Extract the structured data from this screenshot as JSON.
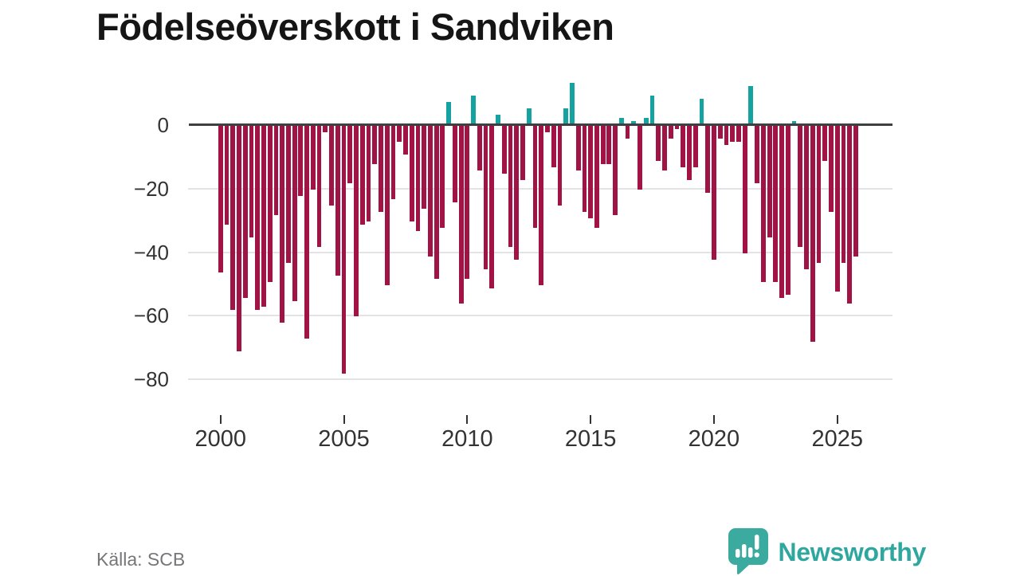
{
  "title": "Födelseöverskott i Sandviken",
  "source": {
    "label": "Källa: SCB"
  },
  "branding": {
    "name": "Newsworthy",
    "logo_icon": "speech-bubble-bar-chart-icon",
    "logo_color": "#3baa9f",
    "wordmark_color": "#2ea79e"
  },
  "colors": {
    "negative_bar": "#a11245",
    "positive_bar": "#14a3a0",
    "zero_line": "#3f3f42",
    "gridline": "#e3e3e5",
    "axis_text": "#333333"
  },
  "chart_data": {
    "type": "bar",
    "title": "Födelseöverskott i Sandviken",
    "frequency": "quarterly",
    "start_year": 2000,
    "periods_per_year": 4,
    "xlabel": "",
    "ylabel": "",
    "ylim": [
      -82,
      15
    ],
    "grid": true,
    "y_ticks": [
      0,
      -20,
      -40,
      -60,
      -80
    ],
    "y_tick_labels": [
      "0",
      "−20",
      "−40",
      "−60",
      "−80"
    ],
    "x_tick_years": [
      2000,
      2005,
      2010,
      2015,
      2020,
      2025
    ],
    "x_tick_labels": [
      "2000",
      "2005",
      "2010",
      "2015",
      "2020",
      "2025"
    ],
    "series": [
      {
        "name": "Födelseöverskott",
        "values": [
          -46,
          -31,
          -58,
          -71,
          -54,
          -35,
          -58,
          -57,
          -49,
          -28,
          -62,
          -43,
          -55,
          -22,
          -67,
          -20,
          -38,
          -2,
          -25,
          -47,
          -78,
          -18,
          -60,
          -31,
          -30,
          -12,
          -27,
          -50,
          -23,
          -5,
          -9,
          -30,
          -33,
          -26,
          -41,
          -48,
          -32,
          7,
          -24,
          -56,
          -48,
          9,
          -14,
          -45,
          -51,
          3,
          -15,
          -38,
          -42,
          -17,
          5,
          -32,
          -50,
          -2,
          -13,
          -25,
          5,
          13,
          -14,
          -27,
          -29,
          -32,
          -12,
          -12,
          -28,
          2,
          -4,
          1,
          -20,
          2,
          9,
          -11,
          -14,
          -4,
          -1,
          -13,
          -17,
          -13,
          8,
          -21,
          -42,
          -4,
          -6,
          -5,
          -5,
          -40,
          12,
          -18,
          -49,
          -35,
          -49,
          -54,
          -53,
          1,
          -38,
          -45,
          -68,
          -43,
          -11,
          -27,
          -52,
          -43,
          -56,
          -41
        ]
      }
    ]
  }
}
